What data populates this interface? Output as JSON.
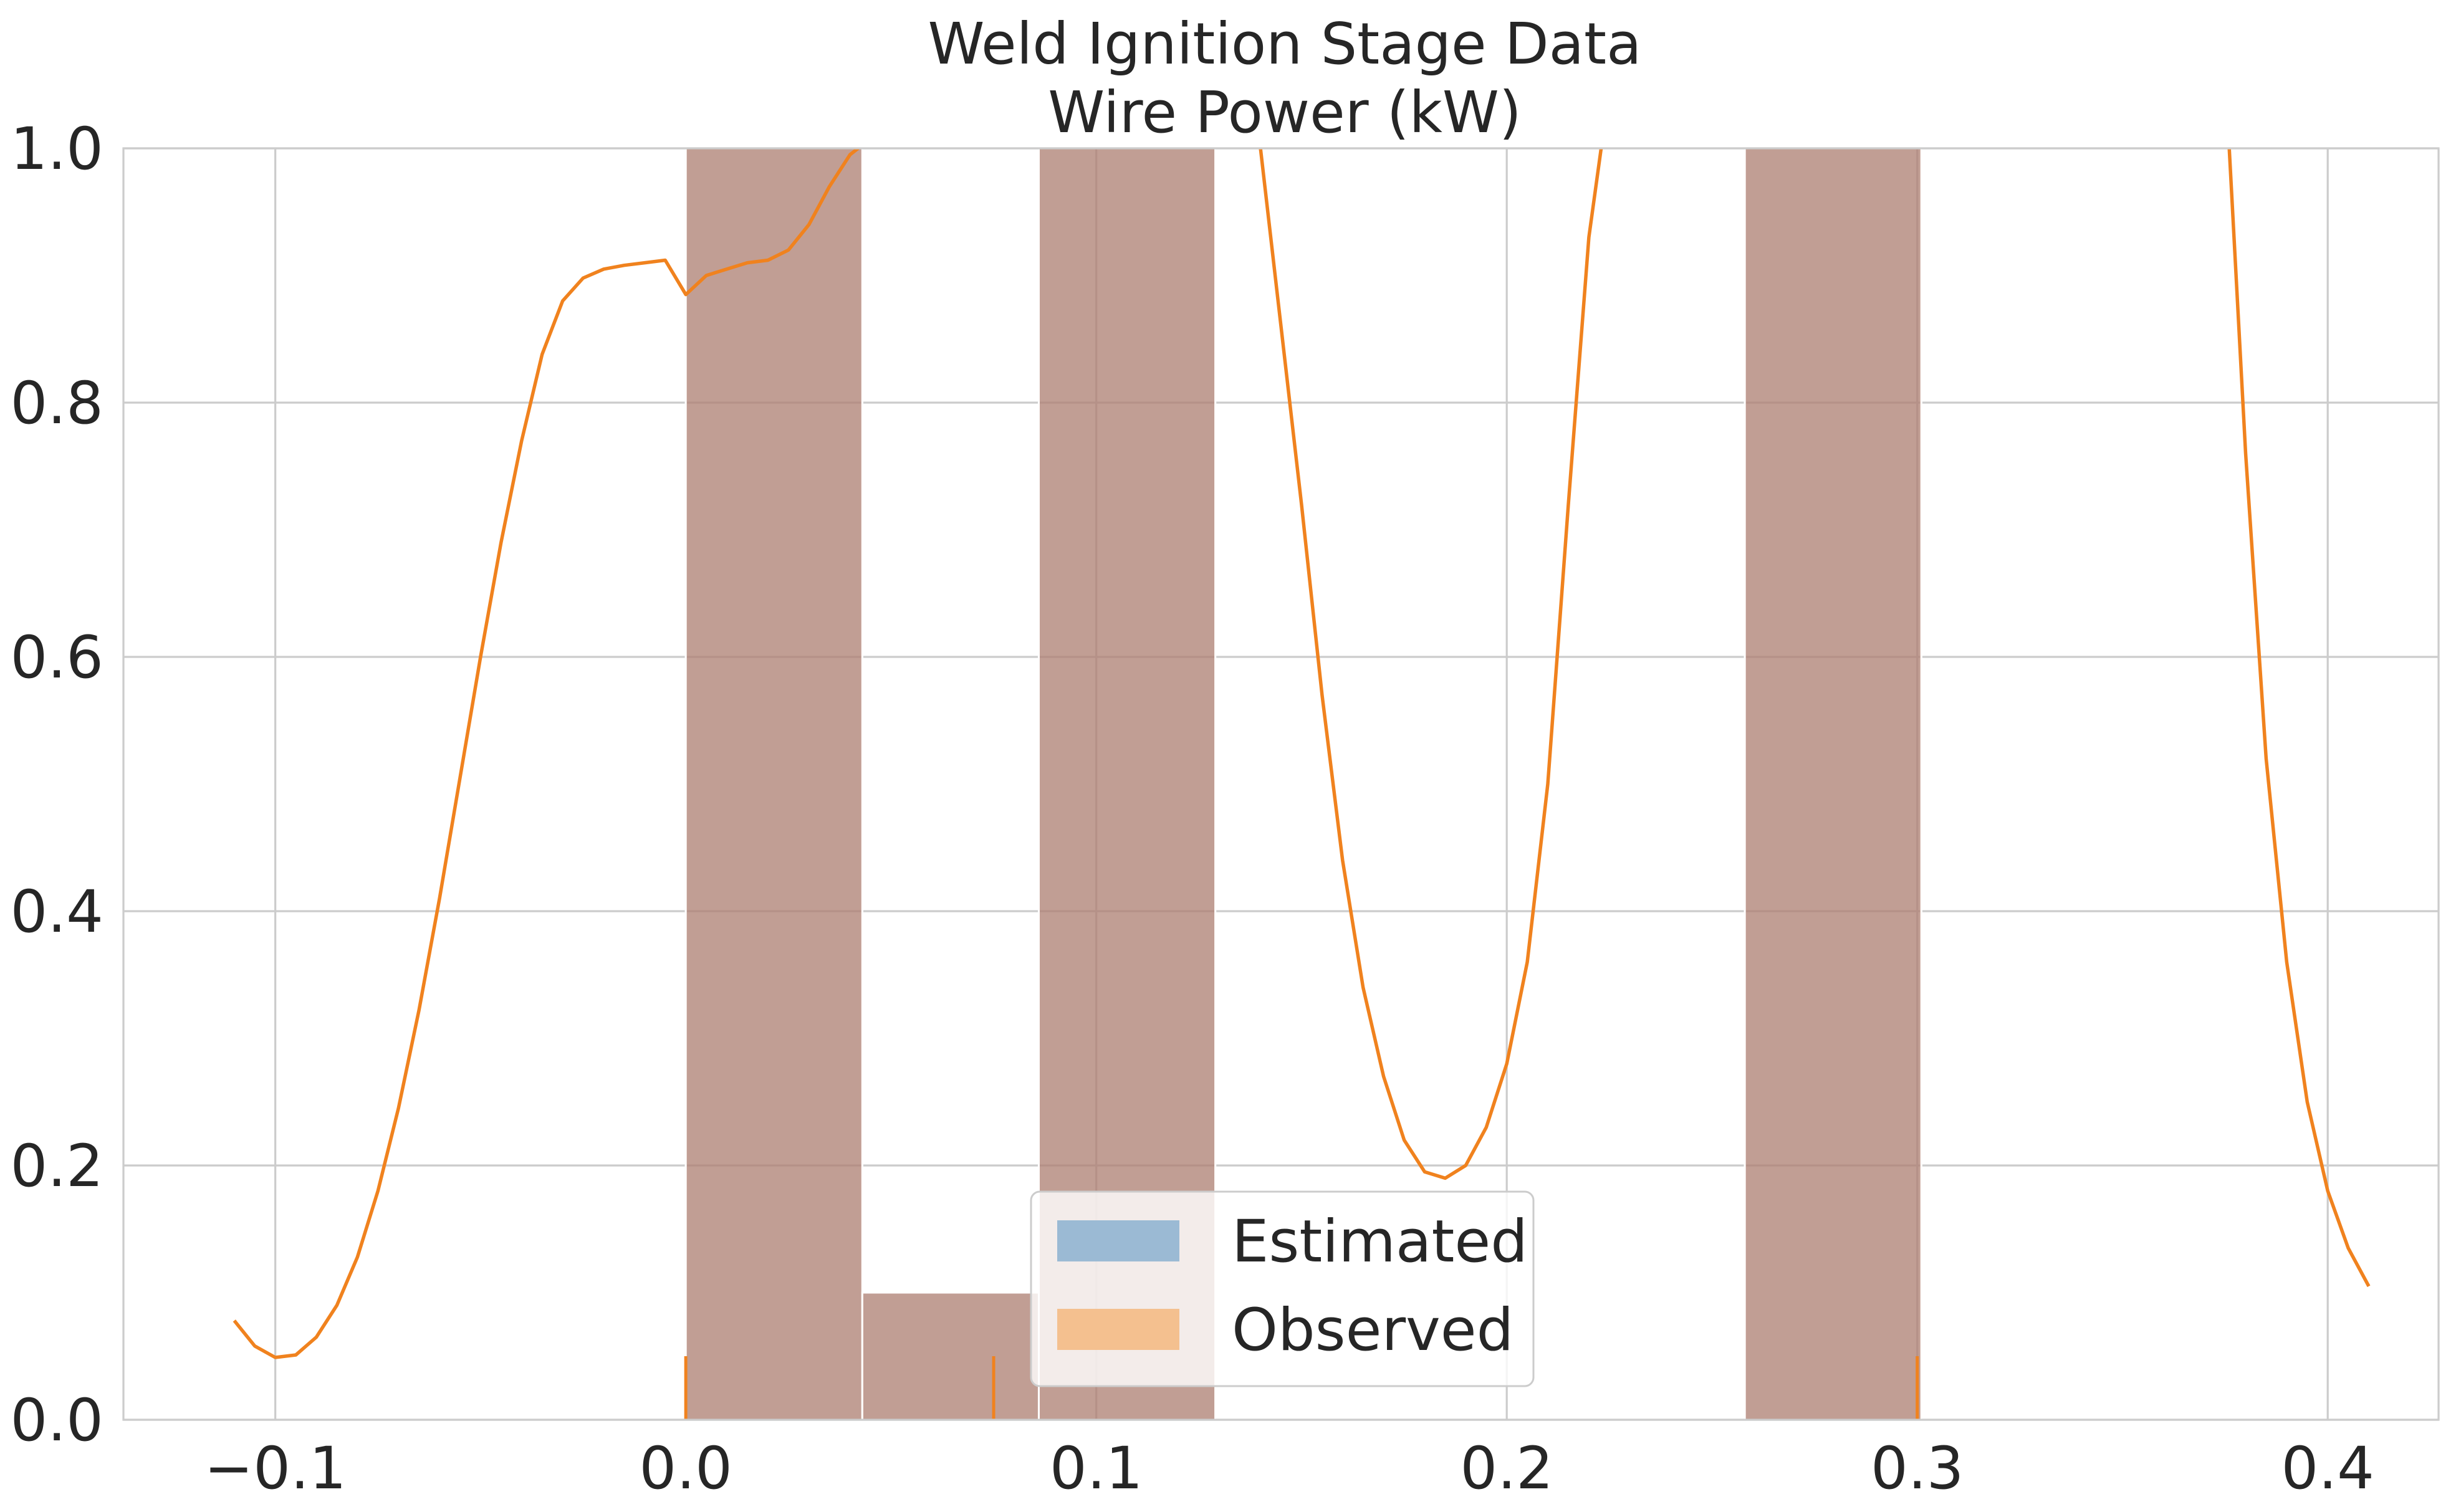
{
  "chart_data": {
    "type": "bar",
    "title": "Weld Ignition Stage Data",
    "subtitle": "Wire Power (kW)",
    "xlabel": "",
    "ylabel": "",
    "xlim": [
      -0.137,
      0.427
    ],
    "ylim": [
      0.0,
      1.0
    ],
    "xticks": [
      -0.1,
      0.0,
      0.1,
      0.2,
      0.3,
      0.4
    ],
    "xtick_labels": [
      "−0.1",
      "0.0",
      "0.1",
      "0.2",
      "0.3",
      "0.4"
    ],
    "yticks": [
      0.0,
      0.2,
      0.4,
      0.6,
      0.8,
      1.0
    ],
    "ytick_labels": [
      "0.0",
      "0.2",
      "0.4",
      "0.6",
      "0.8",
      "1.0"
    ],
    "grid": true,
    "legend_position": "lower-center",
    "colors": {
      "estimated": "#9bbad4",
      "observed": "#f4c08f",
      "overlap": "#c8aa8a",
      "kde_line": "#f0821e",
      "grid": "#cccccc",
      "spine": "#cccccc",
      "text": "#262626"
    },
    "histogram": {
      "bin_edges": [
        0.0,
        0.043,
        0.086,
        0.129,
        0.172,
        0.215,
        0.258,
        0.301
      ],
      "series": [
        {
          "name": "Estimated",
          "values": [
            1.0,
            0.1,
            1.0,
            0.0,
            0.0,
            0.0,
            1.0
          ]
        },
        {
          "name": "Observed",
          "values": [
            1.0,
            0.1,
            1.0,
            0.0,
            0.0,
            0.0,
            1.0
          ]
        }
      ]
    },
    "kde_line": {
      "x": [
        -0.11,
        -0.105,
        -0.1,
        -0.095,
        -0.09,
        -0.085,
        -0.08,
        -0.075,
        -0.07,
        -0.065,
        -0.06,
        -0.055,
        -0.05,
        -0.045,
        -0.04,
        -0.035,
        -0.03,
        -0.025,
        -0.02,
        -0.015,
        -0.01,
        -0.005,
        0.0,
        0.005,
        0.01,
        0.015,
        0.02,
        0.025,
        0.03,
        0.035,
        0.04,
        0.042,
        0.14,
        0.145,
        0.15,
        0.155,
        0.16,
        0.165,
        0.17,
        0.175,
        0.18,
        0.185,
        0.19,
        0.195,
        0.2,
        0.205,
        0.21,
        0.215,
        0.22,
        0.223,
        0.376,
        0.38,
        0.385,
        0.39,
        0.395,
        0.4,
        0.405,
        0.41
      ],
      "y": [
        0.078,
        0.058,
        0.049,
        0.051,
        0.065,
        0.09,
        0.128,
        0.18,
        0.245,
        0.322,
        0.41,
        0.505,
        0.6,
        0.69,
        0.77,
        0.838,
        0.88,
        0.898,
        0.905,
        0.908,
        0.91,
        0.912,
        0.885,
        0.9,
        0.905,
        0.91,
        0.912,
        0.92,
        0.94,
        0.97,
        0.995,
        1.0,
        1.0,
        0.86,
        0.72,
        0.57,
        0.44,
        0.34,
        0.27,
        0.22,
        0.195,
        0.19,
        0.2,
        0.23,
        0.28,
        0.36,
        0.5,
        0.72,
        0.93,
        1.0,
        1.0,
        0.76,
        0.52,
        0.36,
        0.25,
        0.18,
        0.135,
        0.105
      ]
    },
    "rug": {
      "x": [
        0.0,
        0.075,
        0.3
      ],
      "height": 0.05
    },
    "legend": {
      "entries": [
        {
          "label": "Estimated",
          "color": "#9bbad4"
        },
        {
          "label": "Observed",
          "color": "#f4c08f"
        }
      ]
    }
  }
}
